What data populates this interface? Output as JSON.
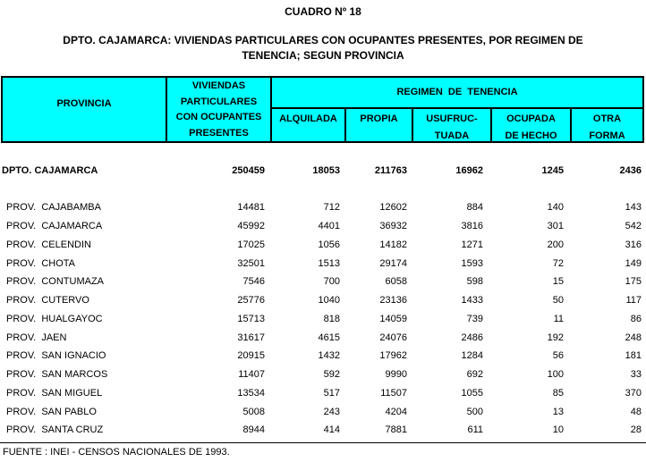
{
  "title": "CUADRO Nº 18",
  "subtitle": "DPTO. CAJAMARCA: VIVIENDAS PARTICULARES CON OCUPANTES PRESENTES, POR REGIMEN DE\nTENENCIA; SEGUN PROVINCIA",
  "colors": {
    "header_bg": "#00ffff",
    "border": "#000000",
    "text": "#000000"
  },
  "table": {
    "columns": {
      "provincia": "PROVINCIA",
      "viviendas": "VIVIENDAS\nPARTICULARES\nCON OCUPANTES\nPRESENTES",
      "regimen_group": "REGIMEN  DE  TENENCIA",
      "sub_headers": [
        "ALQUILADA",
        "PROPIA",
        "USUFRUC-\nTUADA",
        "OCUPADA\nDE HECHO",
        "OTRA\nFORMA"
      ]
    },
    "total_row": {
      "label": "DPTO. CAJAMARCA",
      "values": [
        "250459",
        "18053",
        "211763",
        "16962",
        "1245",
        "2436"
      ]
    },
    "rows": [
      {
        "label": "PROV.  CAJABAMBA",
        "values": [
          "14481",
          "712",
          "12602",
          "884",
          "140",
          "143"
        ]
      },
      {
        "label": "PROV.  CAJAMARCA",
        "values": [
          "45992",
          "4401",
          "36932",
          "3816",
          "301",
          "542"
        ]
      },
      {
        "label": "PROV.  CELENDIN",
        "values": [
          "17025",
          "1056",
          "14182",
          "1271",
          "200",
          "316"
        ]
      },
      {
        "label": "PROV.  CHOTA",
        "values": [
          "32501",
          "1513",
          "29174",
          "1593",
          "72",
          "149"
        ]
      },
      {
        "label": "PROV.  CONTUMAZA",
        "values": [
          "7546",
          "700",
          "6058",
          "598",
          "15",
          "175"
        ]
      },
      {
        "label": "PROV.  CUTERVO",
        "values": [
          "25776",
          "1040",
          "23136",
          "1433",
          "50",
          "117"
        ]
      },
      {
        "label": "PROV.  HUALGAYOC",
        "values": [
          "15713",
          "818",
          "14059",
          "739",
          "11",
          "86"
        ]
      },
      {
        "label": "PROV.  JAEN",
        "values": [
          "31617",
          "4615",
          "24076",
          "2486",
          "192",
          "248"
        ]
      },
      {
        "label": "PROV.  SAN IGNACIO",
        "values": [
          "20915",
          "1432",
          "17962",
          "1284",
          "56",
          "181"
        ]
      },
      {
        "label": "PROV.  SAN MARCOS",
        "values": [
          "11407",
          "592",
          "9990",
          "692",
          "100",
          "33"
        ]
      },
      {
        "label": "PROV.  SAN MIGUEL",
        "values": [
          "13534",
          "517",
          "11507",
          "1055",
          "85",
          "370"
        ]
      },
      {
        "label": "PROV.  SAN PABLO",
        "values": [
          "5008",
          "243",
          "4204",
          "500",
          "13",
          "48"
        ]
      },
      {
        "label": "PROV.  SANTA CRUZ",
        "values": [
          "8944",
          "414",
          "7881",
          "611",
          "10",
          "28"
        ]
      }
    ]
  },
  "footer": "FUENTE : INEI - CENSOS NACIONALES DE 1993."
}
